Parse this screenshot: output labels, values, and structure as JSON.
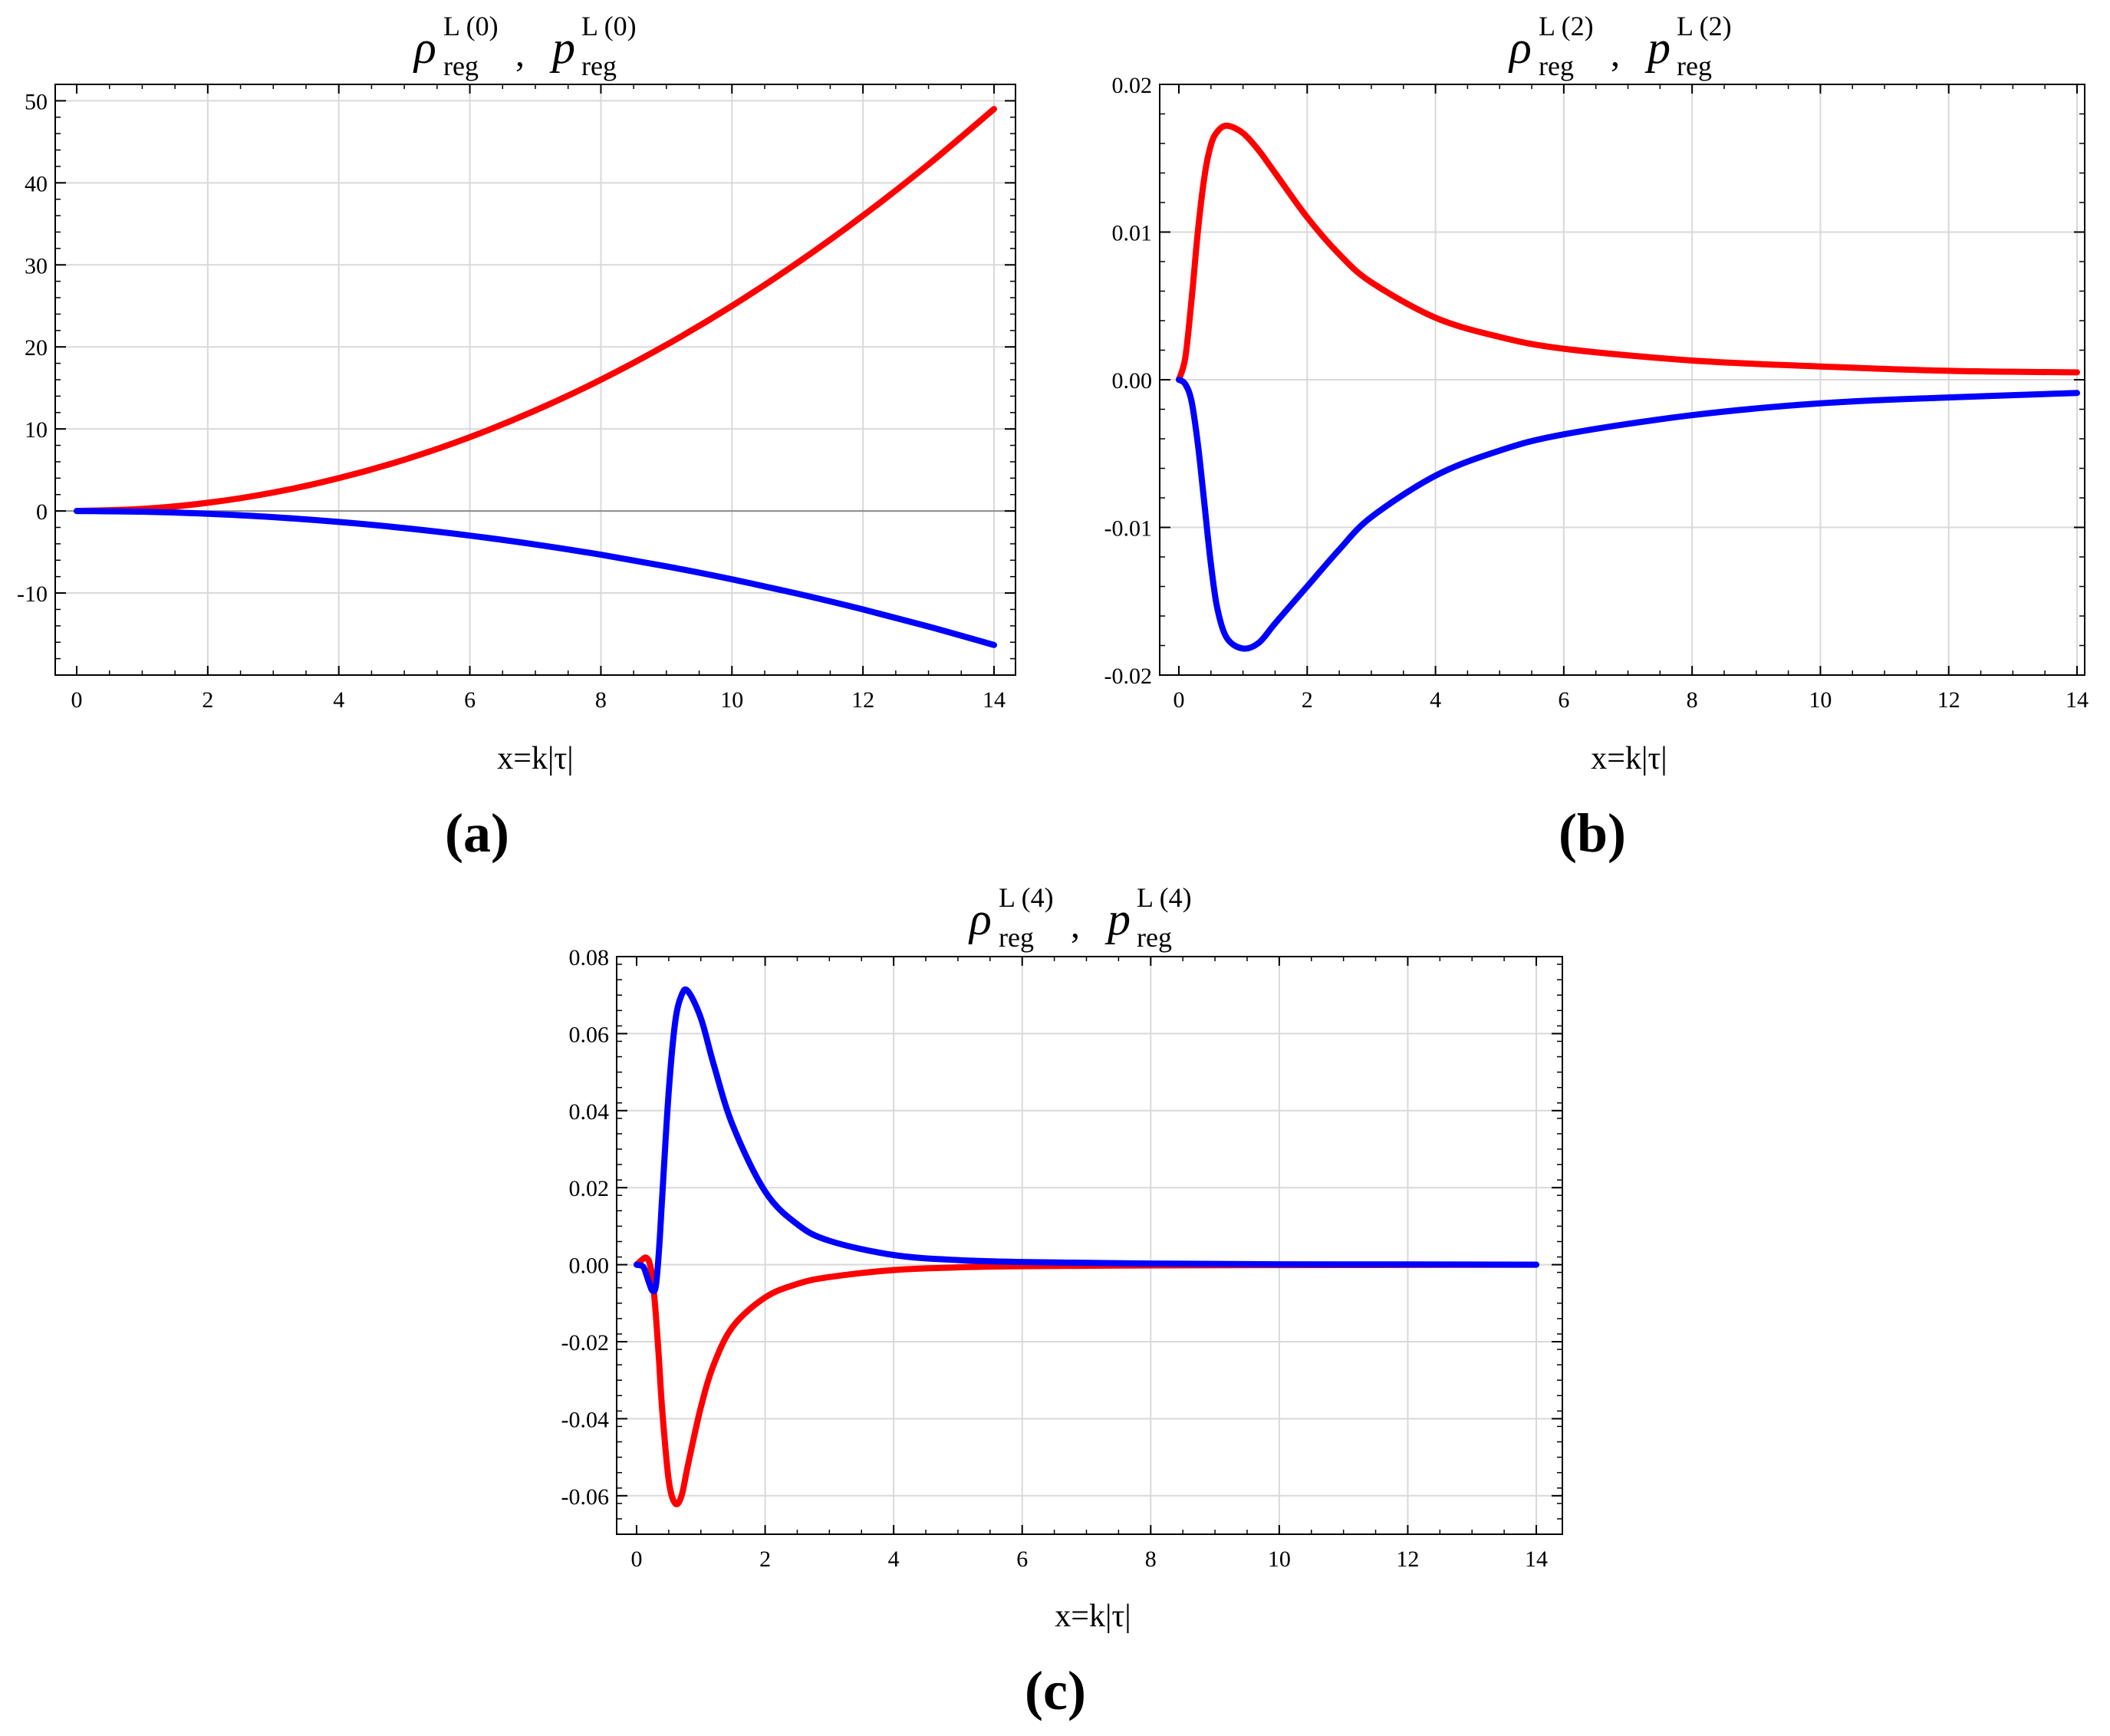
{
  "colors": {
    "rho": "#ff0000",
    "p": "#0000ff",
    "grid": "#d9d9d9",
    "axis": "#000000"
  },
  "chart_data": [
    {
      "id": "a",
      "type": "line",
      "title": {
        "rho": "ρ",
        "p": "p",
        "sup": "L (0)",
        "sub": "reg",
        "sep": ","
      },
      "xlabel": "x=k|τ|",
      "panel_label": "(a)",
      "xlim": [
        0,
        14
      ],
      "ylim": [
        -20,
        52
      ],
      "xticks": [
        0,
        2,
        4,
        6,
        8,
        10,
        12,
        14
      ],
      "xtick_labels": [
        "0",
        "2",
        "4",
        "6",
        "8",
        "10",
        "12",
        "14"
      ],
      "yticks": [
        -10,
        0,
        10,
        20,
        30,
        40,
        50
      ],
      "ytick_labels": [
        "-10",
        "0",
        "10",
        "20",
        "30",
        "40",
        "50"
      ],
      "zero_line": true,
      "series": [
        {
          "name": "rho_reg^L(0)",
          "color": "#ff0000",
          "x": [
            0,
            1,
            2,
            3,
            4,
            5,
            6,
            7,
            8,
            9,
            10,
            11,
            12,
            13,
            14
          ],
          "y": [
            0,
            0.25,
            1.0,
            2.25,
            4.0,
            6.25,
            9.0,
            12.25,
            16.0,
            20.25,
            25.0,
            30.25,
            36.0,
            42.25,
            49.0
          ]
        },
        {
          "name": "p_reg^L(0)",
          "color": "#0000ff",
          "x": [
            0,
            1,
            2,
            3,
            4,
            5,
            6,
            7,
            8,
            9,
            10,
            11,
            12,
            13,
            14
          ],
          "y": [
            0,
            -0.083,
            -0.333,
            -0.75,
            -1.333,
            -2.083,
            -3.0,
            -4.083,
            -5.333,
            -6.75,
            -8.333,
            -10.083,
            -12.0,
            -14.083,
            -16.333
          ]
        }
      ]
    },
    {
      "id": "b",
      "type": "line",
      "title": {
        "rho": "ρ",
        "p": "p",
        "sup": "L (2)",
        "sub": "reg",
        "sep": ","
      },
      "xlabel": "x=k|τ|",
      "panel_label": "(b)",
      "xlim": [
        0,
        14
      ],
      "ylim": [
        -0.02,
        0.02
      ],
      "xticks": [
        0,
        2,
        4,
        6,
        8,
        10,
        12,
        14
      ],
      "xtick_labels": [
        "0",
        "2",
        "4",
        "6",
        "8",
        "10",
        "12",
        "14"
      ],
      "yticks": [
        -0.02,
        -0.01,
        0.0,
        0.01,
        0.02
      ],
      "ytick_labels": [
        "-0.02",
        "-0.01",
        "0.00",
        "0.01",
        "0.02"
      ],
      "zero_line": false,
      "series": [
        {
          "name": "rho_reg^L(2)",
          "color": "#ff0000",
          "x": [
            0,
            0.1,
            0.2,
            0.3,
            0.4,
            0.5,
            0.6,
            0.75,
            1.0,
            1.25,
            1.5,
            2.0,
            2.5,
            3.0,
            4.0,
            5.0,
            6.0,
            8.0,
            10.0,
            12.0,
            14.0
          ],
          "y": [
            0,
            0.0015,
            0.0055,
            0.0102,
            0.0138,
            0.0159,
            0.0168,
            0.0172,
            0.0167,
            0.0155,
            0.014,
            0.011,
            0.0085,
            0.0066,
            0.0042,
            0.0029,
            0.0021,
            0.0013,
            0.0009,
            0.0006,
            0.0005
          ]
        },
        {
          "name": "p_reg^L(2)",
          "color": "#0000ff",
          "x": [
            0,
            0.1,
            0.2,
            0.3,
            0.4,
            0.5,
            0.6,
            0.75,
            1.0,
            1.25,
            1.5,
            2.0,
            2.5,
            3.0,
            4.0,
            5.0,
            6.0,
            8.0,
            10.0,
            12.0,
            14.0
          ],
          "y": [
            0,
            -0.0003,
            -0.0015,
            -0.0045,
            -0.0085,
            -0.0125,
            -0.0155,
            -0.0175,
            -0.0182,
            -0.0178,
            -0.0165,
            -0.014,
            -0.0115,
            -0.0093,
            -0.0065,
            -0.0048,
            -0.0037,
            -0.0024,
            -0.0016,
            -0.0012,
            -0.0009
          ]
        }
      ]
    },
    {
      "id": "c",
      "type": "line",
      "title": {
        "rho": "ρ",
        "p": "p",
        "sup": "L (4)",
        "sub": "reg",
        "sep": ","
      },
      "xlabel": "x=k|τ|",
      "panel_label": "(c)",
      "xlim": [
        0,
        14
      ],
      "ylim": [
        -0.07,
        0.08
      ],
      "xticks": [
        0,
        2,
        4,
        6,
        8,
        10,
        12,
        14
      ],
      "xtick_labels": [
        "0",
        "2",
        "4",
        "6",
        "8",
        "10",
        "12",
        "14"
      ],
      "yticks": [
        -0.06,
        -0.04,
        -0.02,
        0.0,
        0.02,
        0.04,
        0.06,
        0.08
      ],
      "ytick_labels": [
        "-0.06",
        "-0.04",
        "-0.02",
        "0.00",
        "0.02",
        "0.04",
        "0.06",
        "0.08"
      ],
      "zero_line": false,
      "series": [
        {
          "name": "rho_reg^L(4)",
          "color": "#ff0000",
          "x": [
            0,
            0.1,
            0.15,
            0.2,
            0.25,
            0.3,
            0.35,
            0.4,
            0.5,
            0.6,
            0.7,
            0.8,
            1.0,
            1.2,
            1.5,
            2.0,
            2.5,
            3.0,
            4.0,
            5.0,
            6.0,
            8.0,
            10.0,
            12.0,
            14.0
          ],
          "y": [
            0,
            0.0015,
            0.0018,
            0.0005,
            -0.004,
            -0.013,
            -0.025,
            -0.038,
            -0.056,
            -0.062,
            -0.06,
            -0.052,
            -0.037,
            -0.026,
            -0.016,
            -0.0085,
            -0.005,
            -0.0032,
            -0.0014,
            -0.0007,
            -0.0004,
            -0.0002,
            -0.0001,
            -5e-05,
            0
          ]
        },
        {
          "name": "p_reg^L(4)",
          "color": "#0000ff",
          "x": [
            0,
            0.1,
            0.15,
            0.2,
            0.25,
            0.3,
            0.35,
            0.4,
            0.5,
            0.6,
            0.7,
            0.8,
            1.0,
            1.2,
            1.5,
            2.0,
            2.5,
            3.0,
            4.0,
            5.0,
            6.0,
            8.0,
            10.0,
            12.0,
            14.0
          ],
          "y": [
            0,
            -0.0005,
            -0.0025,
            -0.005,
            -0.0068,
            -0.0055,
            0.004,
            0.018,
            0.045,
            0.063,
            0.07,
            0.071,
            0.064,
            0.052,
            0.036,
            0.019,
            0.0105,
            0.0062,
            0.0025,
            0.0012,
            0.0007,
            0.0003,
            0.0001,
            5e-05,
            0
          ]
        }
      ]
    }
  ]
}
